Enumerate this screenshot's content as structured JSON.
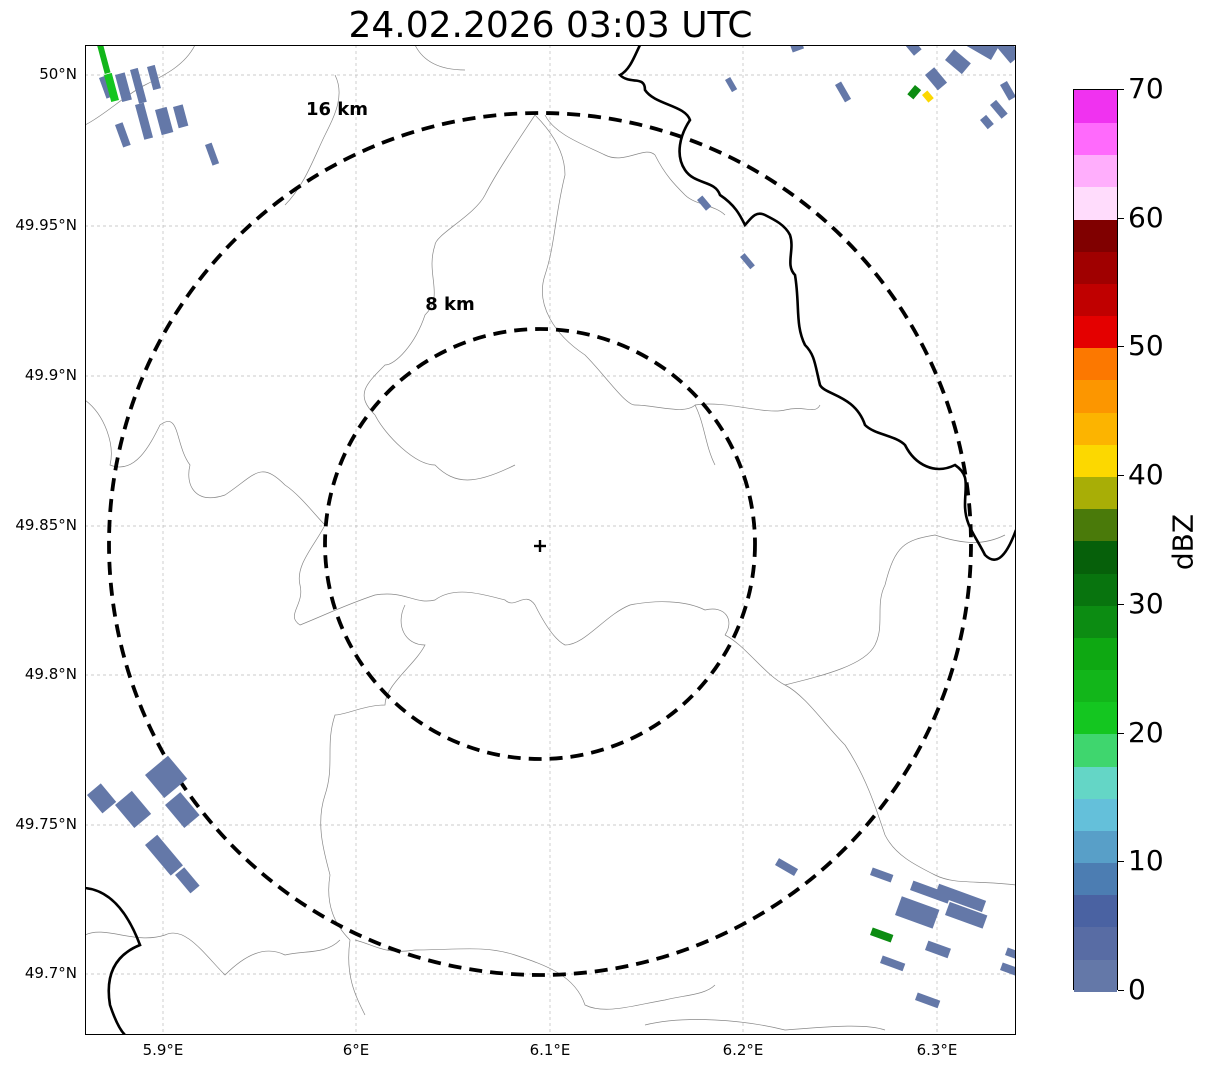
{
  "title": "24.02.2026 03:03 UTC",
  "lat_labels": [
    "50°N",
    "49.95°N",
    "49.9°N",
    "49.85°N",
    "49.8°N",
    "49.75°N",
    "49.7°N"
  ],
  "lon_labels": [
    "5.9°E",
    "6°E",
    "6.1°E",
    "6.2°E",
    "6.3°E"
  ],
  "rings": [
    {
      "label": "16 km",
      "radius_km": 16
    },
    {
      "label": "8 km",
      "radius_km": 8
    }
  ],
  "colorbar": {
    "label": "dBZ",
    "ticks": [
      "0",
      "10",
      "20",
      "30",
      "40",
      "50",
      "60",
      "70"
    ],
    "colors": [
      "#6478a8",
      "#586ca4",
      "#4a62a2",
      "#4c7db2",
      "#589fc8",
      "#64c0da",
      "#64d6c6",
      "#3fd66e",
      "#14c620",
      "#12b61a",
      "#0ea812",
      "#0c8c12",
      "#08740e",
      "#06600a",
      "#4a7a0a",
      "#a8ae06",
      "#fcd800",
      "#fcb400",
      "#fc9600",
      "#fc7800",
      "#e40000",
      "#c00000",
      "#a00000",
      "#800000",
      "#ffdcfc",
      "#ffaefc",
      "#ff6afc",
      "#f032f0"
    ]
  },
  "map": {
    "center": {
      "lon": 6.095,
      "lat": 49.843
    },
    "extent": {
      "lon_min": 5.86,
      "lon_max": 6.34,
      "lat_min": 49.68,
      "lat_max": 50.01
    }
  }
}
